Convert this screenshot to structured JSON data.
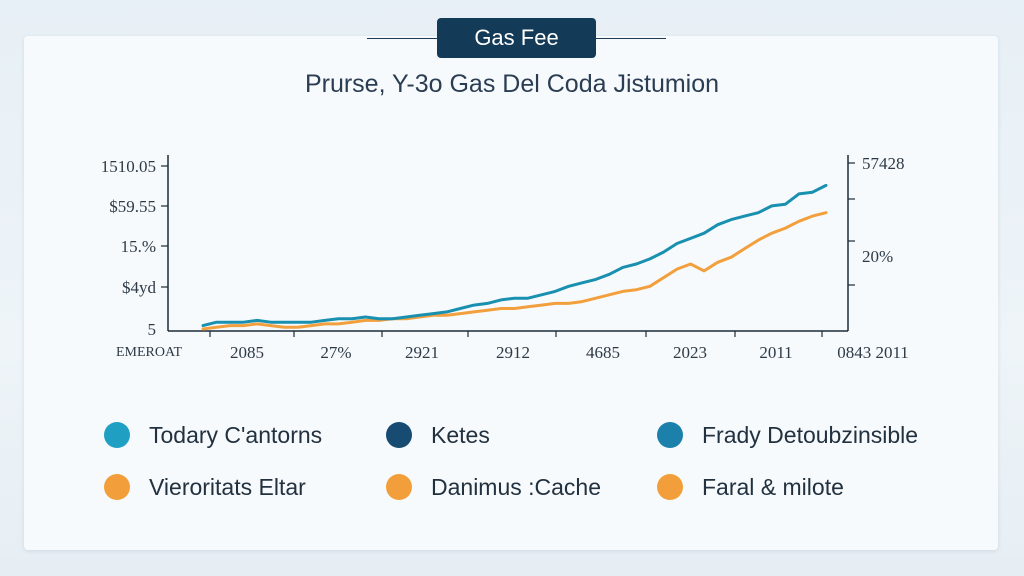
{
  "header": {
    "badge_label": "Gas Fee",
    "subtitle": "Prurse, Y-3o Gas Del Coda Jistumion"
  },
  "colors": {
    "primary_line": "#1a90b0",
    "secondary_line": "#f2a03d",
    "badge_bg": "#133a57",
    "axis": "#1c2a36"
  },
  "chart_data": {
    "type": "line",
    "title": "",
    "xlabel": "EMEROAT",
    "ylabel": "",
    "x_tick_labels": [
      "2085",
      "27%",
      "2921",
      "2912",
      "4685",
      "2023",
      "2011",
      "0843 2011"
    ],
    "y_left_tick_labels": [
      "1510.05",
      "$59.55",
      "15.%",
      "$4yd",
      "5"
    ],
    "y_right_tick_labels": [
      "57428",
      "20%"
    ],
    "ylim": [
      0,
      100
    ],
    "grid": false,
    "legend_position": "bottom",
    "x": [
      0,
      1,
      2,
      3,
      4,
      5,
      6,
      7,
      8,
      9,
      10,
      11,
      12,
      13,
      14,
      15,
      16,
      17,
      18,
      19,
      20,
      21,
      22,
      23,
      24,
      25,
      26,
      27,
      28,
      29,
      30,
      31,
      32,
      33,
      34,
      35,
      36,
      37,
      38,
      39,
      40,
      41,
      42,
      43,
      44,
      45,
      46
    ],
    "series": [
      {
        "values": [
          2,
          4,
          4,
          4,
          5,
          4,
          4,
          4,
          4,
          5,
          6,
          6,
          7,
          6,
          6,
          7,
          8,
          9,
          10,
          12,
          14,
          15,
          17,
          18,
          18,
          20,
          22,
          25,
          27,
          29,
          32,
          36,
          38,
          41,
          45,
          50,
          53,
          56,
          61,
          64,
          66,
          68,
          72,
          73,
          79,
          80,
          84
        ]
      },
      {
        "values": [
          0,
          1,
          2,
          2,
          3,
          2,
          1,
          1,
          2,
          3,
          3,
          4,
          5,
          5,
          6,
          6,
          7,
          8,
          8,
          9,
          10,
          11,
          12,
          12,
          13,
          14,
          15,
          15,
          16,
          18,
          20,
          22,
          23,
          25,
          30,
          35,
          38,
          34,
          39,
          42,
          47,
          52,
          56,
          59,
          63,
          66,
          68
        ]
      }
    ]
  },
  "legend": {
    "items": [
      {
        "label": "Todary C'antorns",
        "color": "#1fa0c3"
      },
      {
        "label": "Ketes",
        "color": "#174b72"
      },
      {
        "label": "Frady Detoubzinsible",
        "color": "#1b80aa"
      },
      {
        "label": "Vieroritats Eltar",
        "color": "#f29f3b"
      },
      {
        "label": "Danimus :Cache",
        "color": "#f29f3b"
      },
      {
        "label": "Faral & milote",
        "color": "#f29f3b"
      }
    ]
  }
}
